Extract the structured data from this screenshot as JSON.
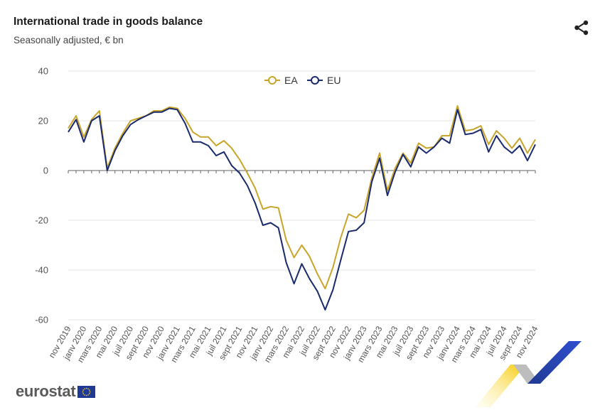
{
  "header": {
    "title": "International trade in goods balance",
    "subtitle": "Seasonally adjusted, € bn"
  },
  "icons": {
    "share": "share-icon",
    "flag": "eu-flag-icon"
  },
  "footer": {
    "logo_text": "eurostat"
  },
  "colors": {
    "EA": "#c8a52a",
    "EU": "#1a2a6c",
    "grid": "#e6e6e6",
    "zero": "#666666"
  },
  "chart_data": {
    "type": "line",
    "ylim": [
      -60,
      40
    ],
    "yticks": [
      40,
      20,
      0,
      -20,
      -40,
      -60
    ],
    "legend_position": "top-center",
    "grid": true,
    "x": [
      "nov 2019",
      "déc 2019",
      "janv 2020",
      "févr 2020",
      "mars 2020",
      "avr 2020",
      "mai 2020",
      "juin 2020",
      "juil 2020",
      "août 2020",
      "sept 2020",
      "oct 2020",
      "nov 2020",
      "déc 2020",
      "janv 2021",
      "févr 2021",
      "mars 2021",
      "avr 2021",
      "mai 2021",
      "juin 2021",
      "juil 2021",
      "août 2021",
      "sept 2021",
      "oct 2021",
      "nov 2021",
      "déc 2021",
      "janv 2022",
      "févr 2022",
      "mars 2022",
      "avr 2022",
      "mai 2022",
      "juin 2022",
      "juil 2022",
      "août 2022",
      "sept 2022",
      "oct 2022",
      "nov 2022",
      "déc 2022",
      "janv 2023",
      "févr 2023",
      "mars 2023",
      "avr 2023",
      "mai 2023",
      "juin 2023",
      "juil 2023",
      "août 2023",
      "sept 2023",
      "oct 2023",
      "nov 2023",
      "déc 2023",
      "janv 2024",
      "févr 2024",
      "mars 2024",
      "avr 2024",
      "mai 2024",
      "juin 2024",
      "juil 2024",
      "août 2024",
      "sept 2024",
      "oct 2024",
      "nov 2024"
    ],
    "x_tick_labels": [
      "nov 2019",
      "janv 2020",
      "mars 2020",
      "mai 2020",
      "juil 2020",
      "sept 2020",
      "nov 2020",
      "janv 2021",
      "mars 2021",
      "mai 2021",
      "juil 2021",
      "sept 2021",
      "nov 2021",
      "janv 2022",
      "mars 2022",
      "mai 2022",
      "juil 2022",
      "sept 2022",
      "nov 2022",
      "janv 2023",
      "mars 2023",
      "mai 2023",
      "juil 2023",
      "sept 2023",
      "nov 2023",
      "janv 2024",
      "mars 2024",
      "mai 2024",
      "juil 2024",
      "sept 2024",
      "nov 2024"
    ],
    "series": [
      {
        "name": "EA",
        "values": [
          17,
          22,
          13.5,
          20.5,
          24,
          1,
          9,
          15,
          20,
          21,
          22,
          24,
          24,
          25.5,
          25,
          21,
          15.5,
          13.5,
          13.5,
          10,
          12,
          9,
          4.5,
          -1,
          -7,
          -15.5,
          -14.5,
          -15,
          -28,
          -35,
          -30,
          -34.5,
          -41.5,
          -47.5,
          -39,
          -27,
          -17.5,
          -19,
          -16,
          -3,
          7,
          -8,
          1,
          7,
          3,
          11,
          9,
          9.5,
          14,
          14,
          26,
          16,
          16.5,
          18,
          10.5,
          16,
          13,
          9,
          13,
          7,
          12.5
        ]
      },
      {
        "name": "EU",
        "values": [
          15.5,
          20.5,
          11.5,
          20,
          22,
          0,
          8,
          14,
          18.5,
          20.5,
          22,
          23.5,
          23.5,
          25,
          24.5,
          19,
          11.5,
          11.5,
          10,
          6,
          7.5,
          2,
          -1,
          -6,
          -13,
          -22,
          -21,
          -23,
          -37,
          -45.5,
          -37.5,
          -43.5,
          -48.5,
          -56,
          -48,
          -36,
          -24.5,
          -24,
          -21,
          -4.5,
          5,
          -10,
          -0.5,
          6.5,
          1.5,
          9.5,
          7,
          9.5,
          13,
          11,
          24.5,
          14.5,
          15,
          16.5,
          7.5,
          14,
          9.5,
          7,
          10,
          4,
          10.5
        ]
      }
    ]
  }
}
